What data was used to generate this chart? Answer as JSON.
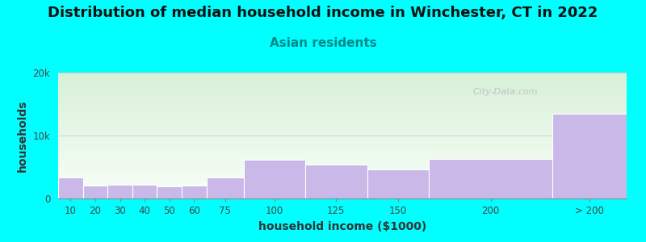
{
  "title": "Distribution of median household income in Winchester, CT in 2022",
  "subtitle": "Asian residents",
  "xlabel": "household income ($1000)",
  "ylabel": "households",
  "background_color": "#00FFFF",
  "bar_color": "#c9b8e8",
  "bar_edge_color": "#ffffff",
  "categories": [
    "10",
    "20",
    "30",
    "40",
    "50",
    "60",
    "75",
    "100",
    "125",
    "150",
    "200",
    "> 200"
  ],
  "bin_edges": [
    0,
    10,
    20,
    30,
    40,
    50,
    60,
    75,
    100,
    125,
    150,
    200,
    230
  ],
  "values": [
    3300,
    2000,
    2200,
    2200,
    1900,
    2000,
    3300,
    6200,
    5400,
    4600,
    6300,
    13500
  ],
  "ylim": [
    0,
    20000
  ],
  "yticks": [
    0,
    10000,
    20000
  ],
  "ytick_labels": [
    "0",
    "10k",
    "20k"
  ],
  "title_fontsize": 13,
  "subtitle_fontsize": 11,
  "axis_label_fontsize": 10,
  "tick_fontsize": 8.5,
  "title_color": "#111111",
  "subtitle_color": "#008888",
  "axis_label_color": "#333333",
  "tick_color": "#444444",
  "watermark_text": "  City-Data.com",
  "watermark_color": "#bbbbbb",
  "grad_color_top": "#d8f0d8",
  "grad_color_bottom": "#f8fff8"
}
